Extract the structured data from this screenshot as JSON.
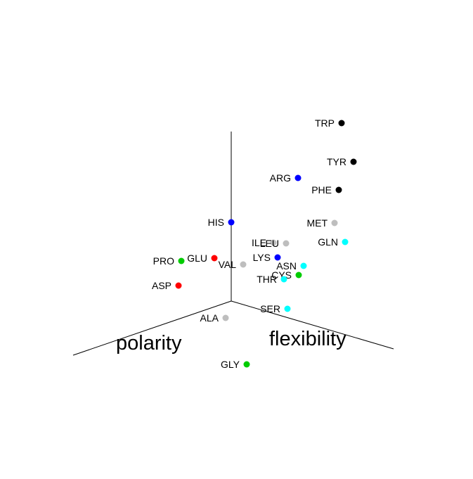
{
  "chart_data": {
    "type": "scatter",
    "projection": "3d",
    "axes": [
      {
        "name": "polarity",
        "label": "polarity"
      },
      {
        "name": "flexibility",
        "label": "flexibility"
      },
      {
        "name": "vertical",
        "label": ""
      }
    ],
    "colors": {
      "red": "#ff0000",
      "green": "#00cc00",
      "blue": "#0000ff",
      "cyan": "#00ffff",
      "gray": "#bebebe",
      "black": "#000000"
    },
    "points": [
      {
        "name": "TRP",
        "x": 0.78,
        "y": 0.0,
        "z": 0.95,
        "color": "#000000"
      },
      {
        "name": "TYR",
        "x": 0.88,
        "y": 0.05,
        "z": 0.72,
        "color": "#000000"
      },
      {
        "name": "ARG",
        "x": 0.45,
        "y": 0.1,
        "z": 0.74,
        "color": "#0000ff"
      },
      {
        "name": "PHE",
        "x": 0.8,
        "y": 0.1,
        "z": 0.6,
        "color": "#000000"
      },
      {
        "name": "HIS",
        "x": 0.0,
        "y": 0.0,
        "z": 0.47,
        "color": "#0000ff"
      },
      {
        "name": "MET",
        "x": 0.72,
        "y": 0.2,
        "z": 0.42,
        "color": "#bebebe"
      },
      {
        "name": "ILE",
        "x": 0.25,
        "y": 0.1,
        "z": 0.34,
        "color": "#bebebe"
      },
      {
        "name": "LEU",
        "x": 0.35,
        "y": 0.1,
        "z": 0.32,
        "color": "#bebebe"
      },
      {
        "name": "GLN",
        "x": 0.75,
        "y": 0.3,
        "z": 0.34,
        "color": "#00ffff"
      },
      {
        "name": "PRO",
        "x": -0.32,
        "y": 0.2,
        "z": 0.1,
        "color": "#00cc00"
      },
      {
        "name": "GLU",
        "x": -0.12,
        "y": 0.1,
        "z": 0.27,
        "color": "#ff0000"
      },
      {
        "name": "LYS",
        "x": 0.28,
        "y": 0.25,
        "z": 0.26,
        "color": "#0000ff"
      },
      {
        "name": "VAL",
        "x": 0.07,
        "y": 0.15,
        "z": 0.2,
        "color": "#bebebe"
      },
      {
        "name": "ASN",
        "x": 0.42,
        "y": 0.3,
        "z": 0.1,
        "color": "#00ffff"
      },
      {
        "name": "CYS",
        "x": 0.38,
        "y": 0.35,
        "z": 0.05,
        "color": "#00cc00"
      },
      {
        "name": "THR",
        "x": 0.3,
        "y": 0.4,
        "z": 0.05,
        "color": "#00ffff"
      },
      {
        "name": "ASP",
        "x": -0.32,
        "y": 0.2,
        "z": -0.02,
        "color": "#ff0000"
      },
      {
        "name": "SER",
        "x": 0.25,
        "y": 0.5,
        "z": -0.2,
        "color": "#00ffff"
      },
      {
        "name": "ALA",
        "x": -0.1,
        "y": 0.35,
        "z": -0.3,
        "color": "#bebebe"
      },
      {
        "name": "GLY",
        "x": -0.15,
        "y": 0.75,
        "z": -0.6,
        "color": "#00cc00"
      }
    ]
  }
}
